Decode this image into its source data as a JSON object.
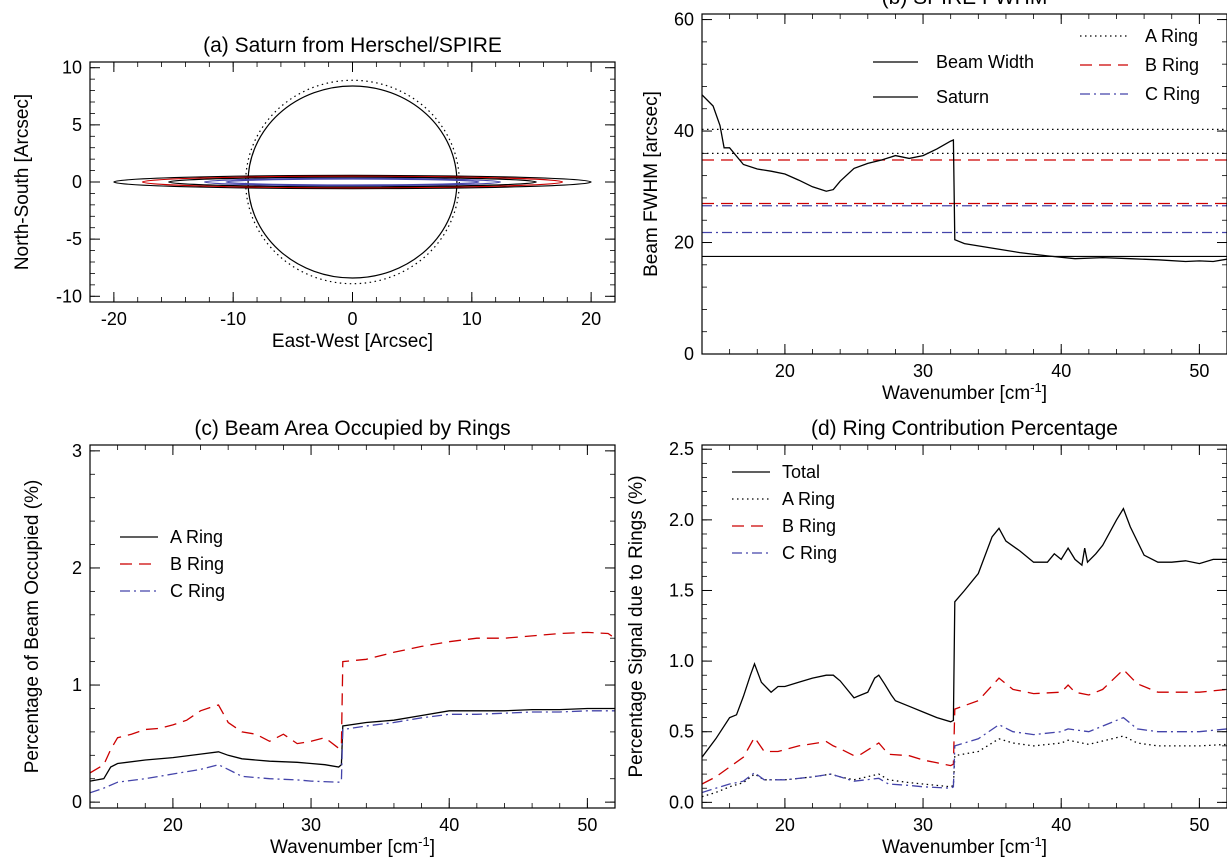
{
  "chart_data": [
    {
      "id": "a",
      "type": "line",
      "title": "(a) Saturn from Herschel/SPIRE",
      "xlabel": "East-West [Arcsec]",
      "ylabel": "North-South [Arcsec]",
      "xlim": [
        -22,
        22
      ],
      "ylim": [
        -10.5,
        10.5
      ],
      "xticks": [
        -20,
        -10,
        0,
        10,
        20
      ],
      "yticks": [
        -10,
        -5,
        0,
        5,
        10
      ],
      "ellipses": [
        {
          "name": "disk",
          "a": 8.75,
          "b": 8.4,
          "color": "#000000",
          "dash": "solid"
        },
        {
          "name": "disk-outline",
          "a": 8.95,
          "b": 8.9,
          "color": "#000000",
          "dash": "dotted"
        },
        {
          "name": "ring-outer-1",
          "a": 20.0,
          "b": 0.58,
          "color": "#000000",
          "dash": "solid"
        },
        {
          "name": "ring-outer-2",
          "a": 17.6,
          "b": 0.5,
          "color": "#cc0000",
          "dash": "solid"
        },
        {
          "name": "ring-middle",
          "a": 15.4,
          "b": 0.42,
          "color": "#000000",
          "dash": "solid"
        },
        {
          "name": "ring-inner-1",
          "a": 12.4,
          "b": 0.32,
          "color": "#4444aa",
          "dash": "solid"
        },
        {
          "name": "ring-inner-2",
          "a": 10.6,
          "b": 0.26,
          "color": "#4444aa",
          "dash": "solid"
        }
      ]
    },
    {
      "id": "b",
      "type": "line",
      "title": "(b) SPIRE FWHM",
      "xlabel": "Wavenumber [cm",
      "xlabel_sup": "-1",
      "xlabel_end": "]",
      "ylabel": "Beam FWHM [arcsec]",
      "xlim": [
        14,
        52
      ],
      "ylim": [
        0,
        61
      ],
      "xticks": [
        20,
        30,
        40,
        50
      ],
      "yticks": [
        0,
        20,
        40,
        60
      ],
      "legend_left": [
        {
          "label": "Beam Width",
          "color": "#000000",
          "dash": "solid"
        },
        {
          "label": "Saturn",
          "color": "#000000",
          "dash": "solid"
        }
      ],
      "legend_right": [
        {
          "label": "A Ring",
          "color": "#000000",
          "dash": "dotted"
        },
        {
          "label": "B Ring",
          "color": "#cc0000",
          "dash": "dashed"
        },
        {
          "label": "C Ring",
          "color": "#4444aa",
          "dash": "dashdot"
        }
      ],
      "hlines": [
        {
          "y": 40.3,
          "color": "#000000",
          "dash": "dotted"
        },
        {
          "y": 36.0,
          "color": "#000000",
          "dash": "dotted"
        },
        {
          "y": 34.8,
          "color": "#cc0000",
          "dash": "dashed"
        },
        {
          "y": 27.0,
          "color": "#cc0000",
          "dash": "dashed"
        },
        {
          "y": 26.6,
          "color": "#4444aa",
          "dash": "dashdot"
        },
        {
          "y": 21.8,
          "color": "#4444aa",
          "dash": "dashdot"
        },
        {
          "y": 17.5,
          "color": "#000000",
          "dash": "solid"
        }
      ],
      "series": [
        {
          "label": "Beam Width",
          "color": "#000000",
          "dash": "solid",
          "x": [
            14,
            14.8,
            15.3,
            15.6,
            16,
            17,
            18,
            19,
            20,
            21,
            22,
            23,
            23.5,
            24,
            25,
            26,
            27,
            28,
            29,
            30,
            31,
            32,
            32.2,
            32.3,
            33,
            35,
            37,
            39,
            41,
            43,
            45,
            47,
            49,
            50,
            51,
            52
          ],
          "y": [
            46.5,
            44.5,
            41,
            37,
            37,
            34,
            33.2,
            32.8,
            32.3,
            31.2,
            30,
            29.2,
            29.5,
            31,
            33.3,
            34.2,
            34.8,
            35.6,
            35.1,
            35.6,
            36.8,
            38.2,
            38.4,
            20.5,
            19.8,
            19.0,
            18.2,
            17.6,
            17.1,
            17.3,
            17.1,
            16.9,
            16.6,
            16.7,
            16.6,
            17.0
          ]
        }
      ]
    },
    {
      "id": "c",
      "type": "line",
      "title": "(c) Beam Area Occupied by Rings",
      "xlabel": "Wavenumber [cm",
      "xlabel_sup": "-1",
      "xlabel_end": "]",
      "ylabel": "Percentage of Beam Occupied (%)",
      "xlim": [
        14,
        52
      ],
      "ylim": [
        -0.05,
        3.05
      ],
      "xticks": [
        20,
        30,
        40,
        50
      ],
      "yticks": [
        0,
        1,
        2,
        3
      ],
      "legend": [
        {
          "label": "A Ring",
          "color": "#000000",
          "dash": "solid"
        },
        {
          "label": "B Ring",
          "color": "#cc0000",
          "dash": "dashed"
        },
        {
          "label": "C Ring",
          "color": "#4444aa",
          "dash": "dashdot"
        }
      ],
      "series": [
        {
          "label": "A Ring",
          "color": "#000000",
          "dash": "solid",
          "x": [
            14,
            15,
            15.5,
            16,
            18,
            20,
            22,
            23.3,
            24,
            25,
            27,
            29,
            30,
            31,
            32,
            32.2,
            32.3,
            34,
            36,
            38,
            40,
            42,
            44,
            46,
            48,
            50,
            52
          ],
          "y": [
            0.18,
            0.2,
            0.3,
            0.33,
            0.36,
            0.38,
            0.41,
            0.43,
            0.4,
            0.37,
            0.35,
            0.34,
            0.33,
            0.32,
            0.3,
            0.32,
            0.65,
            0.68,
            0.7,
            0.74,
            0.78,
            0.78,
            0.78,
            0.79,
            0.79,
            0.8,
            0.8
          ]
        },
        {
          "label": "B Ring",
          "color": "#cc0000",
          "dash": "dashed",
          "x": [
            14,
            15,
            15.5,
            16,
            17,
            18,
            19,
            20,
            21,
            22,
            23,
            23.3,
            24,
            25,
            26,
            27,
            28,
            29,
            30,
            31,
            32,
            32.2,
            32.3,
            34,
            36,
            38,
            40,
            42,
            44,
            46,
            48,
            50,
            51.5,
            52
          ],
          "y": [
            0.25,
            0.32,
            0.45,
            0.55,
            0.58,
            0.62,
            0.63,
            0.66,
            0.7,
            0.78,
            0.82,
            0.83,
            0.68,
            0.6,
            0.58,
            0.52,
            0.58,
            0.5,
            0.52,
            0.55,
            0.46,
            0.48,
            1.2,
            1.22,
            1.28,
            1.33,
            1.37,
            1.4,
            1.4,
            1.42,
            1.44,
            1.45,
            1.44,
            1.4
          ]
        },
        {
          "label": "C Ring",
          "color": "#4444aa",
          "dash": "dashdot",
          "x": [
            14,
            15,
            16,
            18,
            20,
            22,
            23.3,
            24,
            25,
            27,
            29,
            30,
            32,
            32.2,
            32.3,
            34,
            36,
            38,
            40,
            42,
            44,
            46,
            48,
            50,
            52
          ],
          "y": [
            0.08,
            0.12,
            0.17,
            0.2,
            0.24,
            0.28,
            0.32,
            0.28,
            0.22,
            0.2,
            0.19,
            0.18,
            0.17,
            0.18,
            0.62,
            0.65,
            0.68,
            0.72,
            0.75,
            0.75,
            0.76,
            0.77,
            0.77,
            0.78,
            0.78
          ]
        }
      ]
    },
    {
      "id": "d",
      "type": "line",
      "title": "(d) Ring Contribution Percentage",
      "xlabel": "Wavenumber [cm",
      "xlabel_sup": "-1",
      "xlabel_end": "]",
      "ylabel": "Percentage Signal due to Rings (%)",
      "xlim": [
        14,
        52
      ],
      "ylim": [
        -0.04,
        2.53
      ],
      "xticks": [
        20,
        30,
        40,
        50
      ],
      "yticks": [
        0.0,
        0.5,
        1.0,
        1.5,
        2.0,
        2.5
      ],
      "ytick_labels": [
        "0.0",
        "0.5",
        "1.0",
        "1.5",
        "2.0",
        "2.5"
      ],
      "legend": [
        {
          "label": "Total",
          "color": "#000000",
          "dash": "solid"
        },
        {
          "label": "A Ring",
          "color": "#000000",
          "dash": "dotted"
        },
        {
          "label": "B Ring",
          "color": "#cc0000",
          "dash": "dashed"
        },
        {
          "label": "C Ring",
          "color": "#4444aa",
          "dash": "dashdot"
        }
      ],
      "series": [
        {
          "label": "Total",
          "color": "#000000",
          "dash": "solid",
          "x": [
            14,
            15,
            16,
            16.5,
            17,
            17.5,
            17.8,
            18.3,
            19,
            19.5,
            20,
            21,
            22,
            23,
            23.5,
            24,
            24.5,
            25,
            25.5,
            26,
            26.5,
            26.8,
            27.2,
            27.7,
            28,
            29,
            30,
            31,
            32,
            32.2,
            32.3,
            33,
            34,
            35,
            35.5,
            36,
            37,
            38,
            39,
            39.5,
            40,
            40.5,
            41,
            41.5,
            41.7,
            41.9,
            42.5,
            43,
            44,
            44.5,
            45,
            46,
            47,
            48,
            49,
            50,
            51,
            52
          ],
          "y": [
            0.32,
            0.45,
            0.6,
            0.62,
            0.75,
            0.9,
            0.98,
            0.85,
            0.78,
            0.82,
            0.82,
            0.85,
            0.88,
            0.9,
            0.9,
            0.86,
            0.8,
            0.74,
            0.76,
            0.78,
            0.88,
            0.9,
            0.84,
            0.76,
            0.72,
            0.68,
            0.64,
            0.6,
            0.57,
            0.58,
            1.42,
            1.5,
            1.62,
            1.88,
            1.94,
            1.85,
            1.78,
            1.7,
            1.7,
            1.76,
            1.72,
            1.8,
            1.72,
            1.68,
            1.8,
            1.7,
            1.76,
            1.82,
            2.0,
            2.08,
            1.95,
            1.75,
            1.7,
            1.7,
            1.71,
            1.69,
            1.72,
            1.72
          ]
        },
        {
          "label": "A Ring",
          "color": "#000000",
          "dash": "dotted",
          "x": [
            14,
            15,
            16,
            17,
            17.8,
            18.5,
            20,
            22,
            23.3,
            24,
            25,
            26.8,
            27.5,
            29,
            30,
            32,
            32.2,
            32.3,
            34,
            35.5,
            36.5,
            38,
            40,
            40.5,
            42,
            44.5,
            45.5,
            47,
            50,
            52
          ],
          "y": [
            0.04,
            0.07,
            0.11,
            0.14,
            0.2,
            0.16,
            0.16,
            0.18,
            0.2,
            0.18,
            0.16,
            0.2,
            0.16,
            0.14,
            0.13,
            0.11,
            0.12,
            0.33,
            0.36,
            0.45,
            0.42,
            0.4,
            0.42,
            0.44,
            0.41,
            0.47,
            0.42,
            0.4,
            0.4,
            0.41
          ]
        },
        {
          "label": "B Ring",
          "color": "#cc0000",
          "dash": "dashed",
          "x": [
            14,
            15,
            16,
            17,
            17.8,
            18.5,
            19.5,
            21,
            23,
            23.5,
            24,
            25,
            25.5,
            26.8,
            27.5,
            29,
            30,
            31,
            32,
            32.2,
            32.3,
            34,
            35.5,
            36.5,
            38,
            40,
            40.5,
            41,
            42,
            43,
            44.5,
            45.5,
            47,
            50,
            52
          ],
          "y": [
            0.13,
            0.18,
            0.25,
            0.32,
            0.46,
            0.36,
            0.36,
            0.4,
            0.43,
            0.4,
            0.38,
            0.33,
            0.34,
            0.42,
            0.34,
            0.33,
            0.3,
            0.28,
            0.26,
            0.27,
            0.66,
            0.72,
            0.88,
            0.8,
            0.77,
            0.78,
            0.83,
            0.78,
            0.76,
            0.8,
            0.94,
            0.84,
            0.78,
            0.78,
            0.8
          ]
        },
        {
          "label": "C Ring",
          "color": "#4444aa",
          "dash": "dashdot",
          "x": [
            14,
            15,
            16,
            17,
            17.8,
            18.5,
            20,
            22,
            23.3,
            24,
            25,
            26.8,
            27.5,
            29,
            30,
            32,
            32.2,
            32.3,
            34,
            35.5,
            36.5,
            38,
            40,
            40.5,
            42,
            44.5,
            45.5,
            47,
            50,
            52
          ],
          "y": [
            0.07,
            0.1,
            0.13,
            0.15,
            0.21,
            0.16,
            0.16,
            0.18,
            0.2,
            0.18,
            0.15,
            0.17,
            0.13,
            0.12,
            0.11,
            0.1,
            0.11,
            0.4,
            0.45,
            0.55,
            0.5,
            0.48,
            0.5,
            0.52,
            0.5,
            0.6,
            0.52,
            0.5,
            0.5,
            0.52
          ]
        }
      ]
    }
  ]
}
